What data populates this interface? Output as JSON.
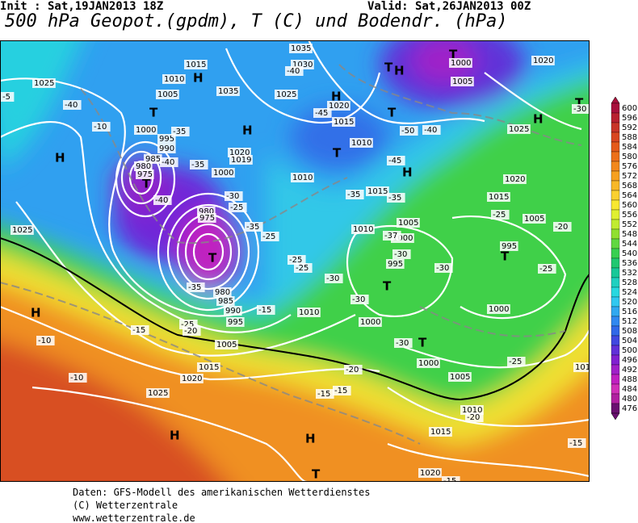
{
  "header": {
    "init": "Init : Sat,19JAN2013 18Z",
    "valid": "Valid: Sat,26JAN2013 00Z",
    "title": "500 hPa Geopot.(gpdm), T (C) und Bodendr. (hPa)"
  },
  "scale": {
    "values": [
      600,
      596,
      592,
      588,
      584,
      580,
      576,
      572,
      568,
      564,
      560,
      556,
      552,
      548,
      544,
      540,
      536,
      532,
      528,
      524,
      520,
      516,
      512,
      508,
      504,
      500,
      496,
      492,
      488,
      484,
      480,
      476
    ],
    "colors": [
      "#a8103c",
      "#b82030",
      "#c83428",
      "#d84620",
      "#e45a1a",
      "#ec701a",
      "#f2881c",
      "#f6a020",
      "#f8b828",
      "#fad030",
      "#f8e830",
      "#e0f030",
      "#c0ec30",
      "#90e030",
      "#60d840",
      "#38d050",
      "#20c870",
      "#18c898",
      "#20d0c0",
      "#28d8e0",
      "#30c8f0",
      "#30a8f0",
      "#3088f0",
      "#3068e8",
      "#4048e0",
      "#6030d8",
      "#8020d0",
      "#a020c8",
      "#c020c0",
      "#d030b8",
      "#b020a0",
      "#6a1070"
    ]
  },
  "map": {
    "labels": [
      "H",
      "H",
      "H",
      "H",
      "H",
      "H",
      "H",
      "H",
      "H",
      "H",
      "T",
      "T",
      "T",
      "T",
      "T",
      "T",
      "T",
      "T",
      "T",
      "T",
      "T",
      "T",
      "1025",
      "1010",
      "1015",
      "1005",
      "1000",
      "995",
      "990",
      "985",
      "980",
      "975",
      "1035",
      "1030",
      "1025",
      "1020",
      "1015",
      "1010",
      "1010",
      "1015",
      "1005",
      "1000",
      "995",
      "1010",
      "1010",
      "1000",
      "1000",
      "1005",
      "1010",
      "1015",
      "1020",
      "1025",
      "1020",
      "1015",
      "1005",
      "995",
      "990",
      "985",
      "980",
      "1025",
      "1020",
      "1015",
      "1005",
      "995",
      "1000",
      "1020",
      "1025",
      "1005",
      "1000",
      "1035",
      "1020",
      "1019",
      "1000",
      "980",
      "975",
      "1015",
      "-40",
      "-10",
      "-40",
      "-40",
      "-35",
      "-35",
      "-30",
      "-25",
      "-35",
      "-25",
      "-25",
      "-25",
      "-30",
      "-30",
      "-30",
      "-30",
      "-35",
      "-45",
      "-45",
      "-40",
      "-50",
      "-40",
      "-35",
      "-37",
      "-25",
      "-25",
      "-30",
      "-20",
      "-25",
      "-30",
      "-20",
      "-15",
      "-15",
      "-15",
      "-20",
      "-15",
      "-10",
      "-10",
      "-25",
      "-20",
      "-15",
      "-15",
      "-35",
      "-5"
    ]
  },
  "footer": {
    "lines": [
      "Daten: GFS-Modell des amerikanischen Wetterdienstes",
      "(C) Wetterzentrale",
      "www.wetterzentrale.de"
    ]
  }
}
